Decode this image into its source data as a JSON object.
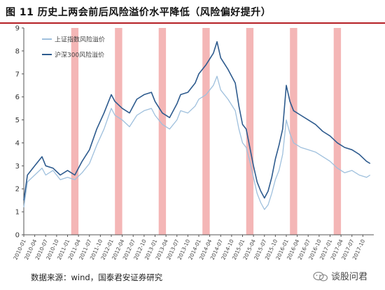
{
  "header": {
    "title": "图 11 历史上两会前后风险溢价水平降低（风险偏好提升）"
  },
  "footer": {
    "source": "数据来源：wind，国泰君安证券研究",
    "watermark": "谈股问君"
  },
  "chart_data": {
    "type": "line",
    "title": "图 11 历史上两会前后风险溢价水平降低（风险偏好提升）",
    "xlabel": "",
    "ylabel": "",
    "ylim": [
      0,
      9
    ],
    "yticks": [
      0,
      1,
      2,
      3,
      4,
      5,
      6,
      7,
      8,
      9
    ],
    "grid": false,
    "legend_position": "top-left",
    "x_tick_labels": [
      "2010-01",
      "2010-04",
      "2010-07",
      "2010-10",
      "2011-01",
      "2011-04",
      "2011-07",
      "2011-10",
      "2012-01",
      "2012-04",
      "2012-07",
      "2012-10",
      "2013-01",
      "2013-04",
      "2013-07",
      "2013-10",
      "2014-01",
      "2014-04",
      "2014-07",
      "2014-10",
      "2015-01",
      "2015-04",
      "2015-07",
      "2015-10",
      "2016-01",
      "2016-04",
      "2016-07",
      "2016-10",
      "2017-01",
      "2017-04",
      "2017-07",
      "2017-10"
    ],
    "shaded_periods": [
      [
        "2011-02",
        "2011-04"
      ],
      [
        "2012-02",
        "2012-04"
      ],
      [
        "2013-02",
        "2013-04"
      ],
      [
        "2014-02",
        "2014-04"
      ],
      [
        "2015-02",
        "2015-04"
      ],
      [
        "2016-02",
        "2016-04"
      ],
      [
        "2017-02",
        "2017-04"
      ]
    ],
    "shade_color": "#f4b6b6",
    "series": [
      {
        "name": "上证指数风险溢价",
        "color": "#9fc0dd",
        "points": [
          [
            "2010-01",
            1.2
          ],
          [
            "2010-02",
            2.3
          ],
          [
            "2010-04",
            2.6
          ],
          [
            "2010-06",
            2.9
          ],
          [
            "2010-07",
            2.6
          ],
          [
            "2010-09",
            2.8
          ],
          [
            "2010-11",
            2.4
          ],
          [
            "2011-01",
            2.5
          ],
          [
            "2011-03",
            2.4
          ],
          [
            "2011-05",
            2.7
          ],
          [
            "2011-07",
            3.1
          ],
          [
            "2011-09",
            3.9
          ],
          [
            "2011-11",
            4.6
          ],
          [
            "2012-01",
            5.5
          ],
          [
            "2012-02",
            5.2
          ],
          [
            "2012-04",
            5.0
          ],
          [
            "2012-06",
            4.7
          ],
          [
            "2012-08",
            5.2
          ],
          [
            "2012-10",
            5.4
          ],
          [
            "2012-12",
            5.5
          ],
          [
            "2013-01",
            5.2
          ],
          [
            "2013-03",
            4.8
          ],
          [
            "2013-05",
            4.6
          ],
          [
            "2013-07",
            5.0
          ],
          [
            "2013-08",
            5.4
          ],
          [
            "2013-10",
            5.3
          ],
          [
            "2013-12",
            5.6
          ],
          [
            "2014-01",
            5.9
          ],
          [
            "2014-03",
            6.1
          ],
          [
            "2014-05",
            6.5
          ],
          [
            "2014-06",
            6.9
          ],
          [
            "2014-07",
            6.3
          ],
          [
            "2014-09",
            5.9
          ],
          [
            "2014-11",
            5.4
          ],
          [
            "2014-12",
            4.6
          ],
          [
            "2015-01",
            4.0
          ],
          [
            "2015-02",
            3.8
          ],
          [
            "2015-03",
            3.2
          ],
          [
            "2015-04",
            2.5
          ],
          [
            "2015-05",
            1.8
          ],
          [
            "2015-06",
            1.4
          ],
          [
            "2015-07",
            1.1
          ],
          [
            "2015-08",
            1.3
          ],
          [
            "2015-09",
            1.8
          ],
          [
            "2015-10",
            2.4
          ],
          [
            "2015-11",
            2.8
          ],
          [
            "2015-12",
            3.5
          ],
          [
            "2016-01",
            5.0
          ],
          [
            "2016-02",
            4.4
          ],
          [
            "2016-03",
            4.0
          ],
          [
            "2016-05",
            3.8
          ],
          [
            "2016-07",
            3.7
          ],
          [
            "2016-09",
            3.6
          ],
          [
            "2016-11",
            3.4
          ],
          [
            "2017-01",
            3.2
          ],
          [
            "2017-03",
            2.9
          ],
          [
            "2017-05",
            2.7
          ],
          [
            "2017-07",
            2.8
          ],
          [
            "2017-09",
            2.6
          ],
          [
            "2017-11",
            2.5
          ],
          [
            "2017-12",
            2.6
          ]
        ]
      },
      {
        "name": "沪深300风险溢价",
        "color": "#2e5b8e",
        "points": [
          [
            "2010-01",
            1.5
          ],
          [
            "2010-02",
            2.6
          ],
          [
            "2010-04",
            3.0
          ],
          [
            "2010-06",
            3.4
          ],
          [
            "2010-07",
            3.0
          ],
          [
            "2010-09",
            2.9
          ],
          [
            "2010-11",
            2.6
          ],
          [
            "2011-01",
            2.8
          ],
          [
            "2011-03",
            2.6
          ],
          [
            "2011-05",
            3.2
          ],
          [
            "2011-07",
            3.7
          ],
          [
            "2011-09",
            4.6
          ],
          [
            "2011-11",
            5.3
          ],
          [
            "2012-01",
            6.1
          ],
          [
            "2012-02",
            5.8
          ],
          [
            "2012-04",
            5.5
          ],
          [
            "2012-06",
            5.3
          ],
          [
            "2012-08",
            5.9
          ],
          [
            "2012-10",
            6.1
          ],
          [
            "2012-12",
            6.2
          ],
          [
            "2013-01",
            5.8
          ],
          [
            "2013-03",
            5.3
          ],
          [
            "2013-05",
            5.1
          ],
          [
            "2013-07",
            5.7
          ],
          [
            "2013-08",
            6.1
          ],
          [
            "2013-10",
            6.2
          ],
          [
            "2013-12",
            6.6
          ],
          [
            "2014-01",
            7.0
          ],
          [
            "2014-03",
            7.4
          ],
          [
            "2014-05",
            7.9
          ],
          [
            "2014-06",
            8.4
          ],
          [
            "2014-07",
            7.7
          ],
          [
            "2014-09",
            7.2
          ],
          [
            "2014-11",
            6.6
          ],
          [
            "2014-12",
            5.6
          ],
          [
            "2015-01",
            4.8
          ],
          [
            "2015-02",
            4.6
          ],
          [
            "2015-03",
            3.8
          ],
          [
            "2015-04",
            3.0
          ],
          [
            "2015-05",
            2.3
          ],
          [
            "2015-06",
            1.9
          ],
          [
            "2015-07",
            1.6
          ],
          [
            "2015-08",
            1.9
          ],
          [
            "2015-09",
            2.5
          ],
          [
            "2015-10",
            3.3
          ],
          [
            "2015-11",
            3.9
          ],
          [
            "2015-12",
            4.6
          ],
          [
            "2016-01",
            6.5
          ],
          [
            "2016-02",
            5.8
          ],
          [
            "2016-03",
            5.4
          ],
          [
            "2016-05",
            5.2
          ],
          [
            "2016-07",
            5.0
          ],
          [
            "2016-09",
            4.8
          ],
          [
            "2016-11",
            4.5
          ],
          [
            "2017-01",
            4.3
          ],
          [
            "2017-03",
            4.0
          ],
          [
            "2017-05",
            3.8
          ],
          [
            "2017-07",
            3.7
          ],
          [
            "2017-09",
            3.5
          ],
          [
            "2017-11",
            3.2
          ],
          [
            "2017-12",
            3.1
          ]
        ]
      }
    ]
  }
}
